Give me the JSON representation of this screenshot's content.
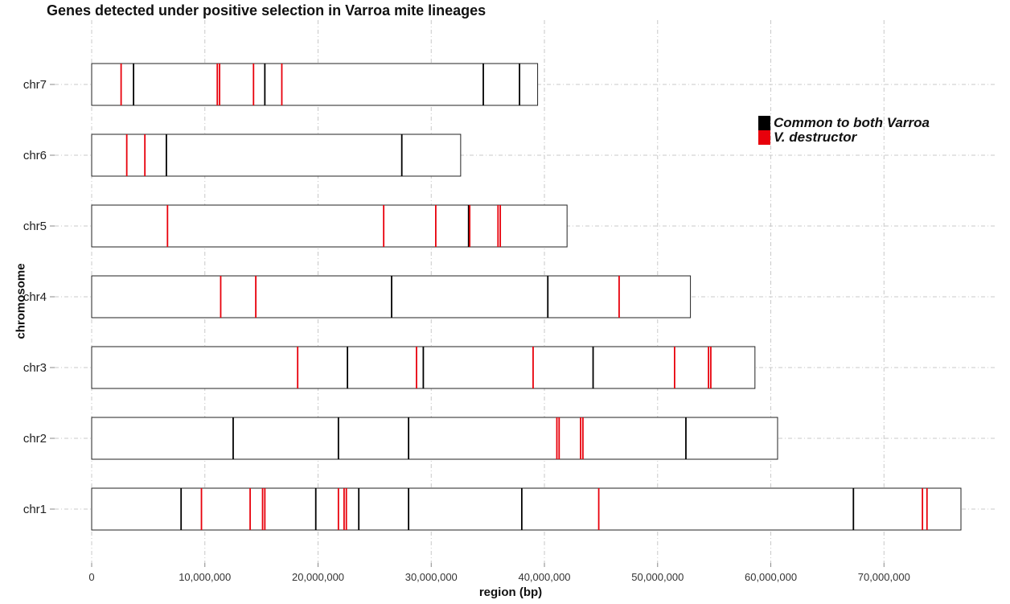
{
  "chart_data": {
    "type": "chromosome-ideogram",
    "title": "Genes detected under positive selection in Varroa mite lineages",
    "xlabel": "region (bp)",
    "ylabel": "chromosome",
    "xlim": [
      0,
      78000000
    ],
    "x_ticks": [
      0,
      10000000,
      20000000,
      30000000,
      40000000,
      50000000,
      60000000,
      70000000
    ],
    "x_tick_labels": [
      "0",
      "10,000,000",
      "20,000,000",
      "30,000,000",
      "40,000,000",
      "50,000,000",
      "60,000,000",
      "70,000,000"
    ],
    "grid": true,
    "legend_position": "top-right",
    "legend": [
      {
        "name": "Common to both Varroa",
        "color": "#000000"
      },
      {
        "name": "V. destructor",
        "color": "#e8000b"
      }
    ],
    "chromosomes": [
      {
        "name": "chr7",
        "length": 39400000,
        "common": [
          3700000,
          15300000,
          34600000,
          37800000
        ],
        "destructor": [
          2600000,
          11100000,
          11300000,
          14300000,
          16800000
        ]
      },
      {
        "name": "chr6",
        "length": 32600000,
        "common": [
          6600000,
          27400000
        ],
        "destructor": [
          3100000,
          4700000
        ]
      },
      {
        "name": "chr5",
        "length": 42000000,
        "common": [
          33300000
        ],
        "destructor": [
          6700000,
          25800000,
          30400000,
          33400000,
          35900000,
          36100000
        ]
      },
      {
        "name": "chr4",
        "length": 52900000,
        "common": [
          26500000,
          40300000
        ],
        "destructor": [
          11400000,
          14500000,
          46600000
        ]
      },
      {
        "name": "chr3",
        "length": 58600000,
        "common": [
          22600000,
          29300000,
          44300000
        ],
        "destructor": [
          18200000,
          28700000,
          39000000,
          51500000,
          54500000,
          54700000
        ]
      },
      {
        "name": "chr2",
        "length": 60600000,
        "common": [
          12500000,
          21800000,
          28000000,
          52500000
        ],
        "destructor": [
          41100000,
          41300000,
          43200000,
          43400000
        ]
      },
      {
        "name": "chr1",
        "length": 76800000,
        "common": [
          7900000,
          19800000,
          23600000,
          28000000,
          38000000,
          67300000
        ],
        "destructor": [
          9700000,
          14000000,
          15100000,
          15300000,
          21800000,
          22300000,
          22500000,
          44800000,
          73400000,
          73800000
        ]
      }
    ]
  }
}
